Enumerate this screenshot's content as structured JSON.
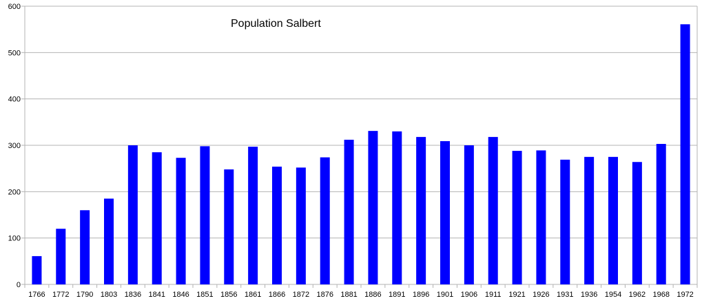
{
  "chart_data": {
    "type": "bar",
    "title": "Population Salbert",
    "xlabel": "",
    "ylabel": "",
    "categories": [
      "1766",
      "1772",
      "1790",
      "1803",
      "1836",
      "1841",
      "1846",
      "1851",
      "1856",
      "1861",
      "1866",
      "1872",
      "1876",
      "1881",
      "1886",
      "1891",
      "1896",
      "1901",
      "1906",
      "1911",
      "1921",
      "1926",
      "1931",
      "1936",
      "1954",
      "1962",
      "1968",
      "1972"
    ],
    "values": [
      61,
      120,
      160,
      185,
      300,
      285,
      273,
      298,
      248,
      297,
      254,
      252,
      274,
      312,
      331,
      330,
      318,
      309,
      300,
      318,
      288,
      289,
      269,
      275,
      275,
      264,
      303,
      561
    ],
    "ylim": [
      0,
      600
    ],
    "yticks": [
      0,
      100,
      200,
      300,
      400,
      500,
      600
    ],
    "grid": true,
    "legend": "none",
    "bar_color": "#0000FF",
    "grid_color": "#b3b3b3",
    "axis_color": "#b3b3b3"
  }
}
